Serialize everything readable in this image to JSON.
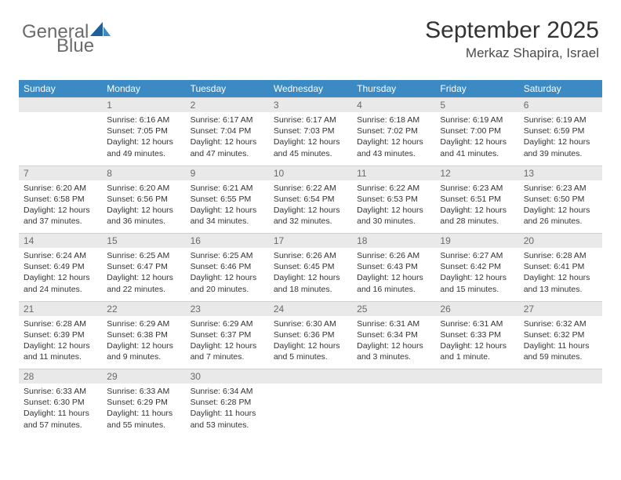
{
  "logo": {
    "part1": "General",
    "part2": "Blue"
  },
  "header": {
    "month": "September 2025",
    "location": "Merkaz Shapira, Israel"
  },
  "colors": {
    "header_bg": "#3b8ac4",
    "header_text": "#ffffff",
    "daynum_bg": "#e9e9e9",
    "daynum_text": "#6a6a6a",
    "logo_gray": "#6b6b6b",
    "logo_blue": "#3b8ac4",
    "body_text": "#333333"
  },
  "fonts": {
    "title_size": 30,
    "location_size": 17,
    "dayheader_size": 12,
    "cell_size": 10.5
  },
  "dayNames": [
    "Sunday",
    "Monday",
    "Tuesday",
    "Wednesday",
    "Thursday",
    "Friday",
    "Saturday"
  ],
  "weeks": [
    [
      {
        "n": "",
        "lines": []
      },
      {
        "n": "1",
        "lines": [
          "Sunrise: 6:16 AM",
          "Sunset: 7:05 PM",
          "Daylight: 12 hours and 49 minutes."
        ]
      },
      {
        "n": "2",
        "lines": [
          "Sunrise: 6:17 AM",
          "Sunset: 7:04 PM",
          "Daylight: 12 hours and 47 minutes."
        ]
      },
      {
        "n": "3",
        "lines": [
          "Sunrise: 6:17 AM",
          "Sunset: 7:03 PM",
          "Daylight: 12 hours and 45 minutes."
        ]
      },
      {
        "n": "4",
        "lines": [
          "Sunrise: 6:18 AM",
          "Sunset: 7:02 PM",
          "Daylight: 12 hours and 43 minutes."
        ]
      },
      {
        "n": "5",
        "lines": [
          "Sunrise: 6:19 AM",
          "Sunset: 7:00 PM",
          "Daylight: 12 hours and 41 minutes."
        ]
      },
      {
        "n": "6",
        "lines": [
          "Sunrise: 6:19 AM",
          "Sunset: 6:59 PM",
          "Daylight: 12 hours and 39 minutes."
        ]
      }
    ],
    [
      {
        "n": "7",
        "lines": [
          "Sunrise: 6:20 AM",
          "Sunset: 6:58 PM",
          "Daylight: 12 hours and 37 minutes."
        ]
      },
      {
        "n": "8",
        "lines": [
          "Sunrise: 6:20 AM",
          "Sunset: 6:56 PM",
          "Daylight: 12 hours and 36 minutes."
        ]
      },
      {
        "n": "9",
        "lines": [
          "Sunrise: 6:21 AM",
          "Sunset: 6:55 PM",
          "Daylight: 12 hours and 34 minutes."
        ]
      },
      {
        "n": "10",
        "lines": [
          "Sunrise: 6:22 AM",
          "Sunset: 6:54 PM",
          "Daylight: 12 hours and 32 minutes."
        ]
      },
      {
        "n": "11",
        "lines": [
          "Sunrise: 6:22 AM",
          "Sunset: 6:53 PM",
          "Daylight: 12 hours and 30 minutes."
        ]
      },
      {
        "n": "12",
        "lines": [
          "Sunrise: 6:23 AM",
          "Sunset: 6:51 PM",
          "Daylight: 12 hours and 28 minutes."
        ]
      },
      {
        "n": "13",
        "lines": [
          "Sunrise: 6:23 AM",
          "Sunset: 6:50 PM",
          "Daylight: 12 hours and 26 minutes."
        ]
      }
    ],
    [
      {
        "n": "14",
        "lines": [
          "Sunrise: 6:24 AM",
          "Sunset: 6:49 PM",
          "Daylight: 12 hours and 24 minutes."
        ]
      },
      {
        "n": "15",
        "lines": [
          "Sunrise: 6:25 AM",
          "Sunset: 6:47 PM",
          "Daylight: 12 hours and 22 minutes."
        ]
      },
      {
        "n": "16",
        "lines": [
          "Sunrise: 6:25 AM",
          "Sunset: 6:46 PM",
          "Daylight: 12 hours and 20 minutes."
        ]
      },
      {
        "n": "17",
        "lines": [
          "Sunrise: 6:26 AM",
          "Sunset: 6:45 PM",
          "Daylight: 12 hours and 18 minutes."
        ]
      },
      {
        "n": "18",
        "lines": [
          "Sunrise: 6:26 AM",
          "Sunset: 6:43 PM",
          "Daylight: 12 hours and 16 minutes."
        ]
      },
      {
        "n": "19",
        "lines": [
          "Sunrise: 6:27 AM",
          "Sunset: 6:42 PM",
          "Daylight: 12 hours and 15 minutes."
        ]
      },
      {
        "n": "20",
        "lines": [
          "Sunrise: 6:28 AM",
          "Sunset: 6:41 PM",
          "Daylight: 12 hours and 13 minutes."
        ]
      }
    ],
    [
      {
        "n": "21",
        "lines": [
          "Sunrise: 6:28 AM",
          "Sunset: 6:39 PM",
          "Daylight: 12 hours and 11 minutes."
        ]
      },
      {
        "n": "22",
        "lines": [
          "Sunrise: 6:29 AM",
          "Sunset: 6:38 PM",
          "Daylight: 12 hours and 9 minutes."
        ]
      },
      {
        "n": "23",
        "lines": [
          "Sunrise: 6:29 AM",
          "Sunset: 6:37 PM",
          "Daylight: 12 hours and 7 minutes."
        ]
      },
      {
        "n": "24",
        "lines": [
          "Sunrise: 6:30 AM",
          "Sunset: 6:36 PM",
          "Daylight: 12 hours and 5 minutes."
        ]
      },
      {
        "n": "25",
        "lines": [
          "Sunrise: 6:31 AM",
          "Sunset: 6:34 PM",
          "Daylight: 12 hours and 3 minutes."
        ]
      },
      {
        "n": "26",
        "lines": [
          "Sunrise: 6:31 AM",
          "Sunset: 6:33 PM",
          "Daylight: 12 hours and 1 minute."
        ]
      },
      {
        "n": "27",
        "lines": [
          "Sunrise: 6:32 AM",
          "Sunset: 6:32 PM",
          "Daylight: 11 hours and 59 minutes."
        ]
      }
    ],
    [
      {
        "n": "28",
        "lines": [
          "Sunrise: 6:33 AM",
          "Sunset: 6:30 PM",
          "Daylight: 11 hours and 57 minutes."
        ]
      },
      {
        "n": "29",
        "lines": [
          "Sunrise: 6:33 AM",
          "Sunset: 6:29 PM",
          "Daylight: 11 hours and 55 minutes."
        ]
      },
      {
        "n": "30",
        "lines": [
          "Sunrise: 6:34 AM",
          "Sunset: 6:28 PM",
          "Daylight: 11 hours and 53 minutes."
        ]
      },
      {
        "n": "",
        "lines": []
      },
      {
        "n": "",
        "lines": []
      },
      {
        "n": "",
        "lines": []
      },
      {
        "n": "",
        "lines": []
      }
    ]
  ]
}
